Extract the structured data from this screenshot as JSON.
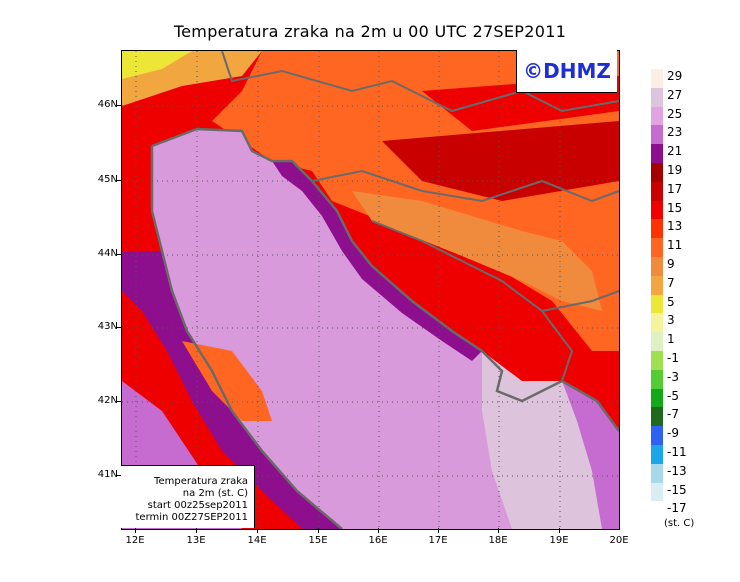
{
  "title": "Temperatura zraka na 2m u 00 UTC 27SEP2011",
  "logo": "©DHMZ",
  "infobox": {
    "line1": "Temperatura zraka",
    "line2": "na 2m (st. C)",
    "line3": "start 00z25sep2011",
    "line4": "termin 00Z27SEP2011"
  },
  "lat_labels": [
    "46N",
    "45N",
    "44N",
    "43N",
    "42N",
    "41N"
  ],
  "lon_labels": [
    "12E",
    "13E",
    "14E",
    "15E",
    "16E",
    "17E",
    "18E",
    "19E",
    "20E"
  ],
  "legend": {
    "units": "(st. C)",
    "labels": [
      "29",
      "27",
      "25",
      "23",
      "21",
      "19",
      "17",
      "15",
      "13",
      "11",
      "9",
      "7",
      "5",
      "3",
      "1",
      "-1",
      "-3",
      "-5",
      "-7",
      "-9",
      "-11",
      "-13",
      "-15",
      "-17"
    ],
    "colors": [
      "#fbeee3",
      "#dcc3de",
      "#e2a3e0",
      "#c66bcf",
      "#8e0f8e",
      "#a40000",
      "#c90000",
      "#ee0000",
      "#ff3300",
      "#ff6622",
      "#f08a3c",
      "#f1a640",
      "#ece636",
      "#f5f49a",
      "#dff0c2",
      "#a0e050",
      "#55cc33",
      "#17a817",
      "#1f6a1f",
      "#2e63f2",
      "#1aa6e8",
      "#a8d8ea",
      "#d8eef3",
      "#ffffff"
    ]
  },
  "colors": {
    "sea": "#d99adb",
    "sea_south": "#ddc4dc",
    "coast": "#6a6a6a",
    "logo_text": "#1f2fd6"
  }
}
